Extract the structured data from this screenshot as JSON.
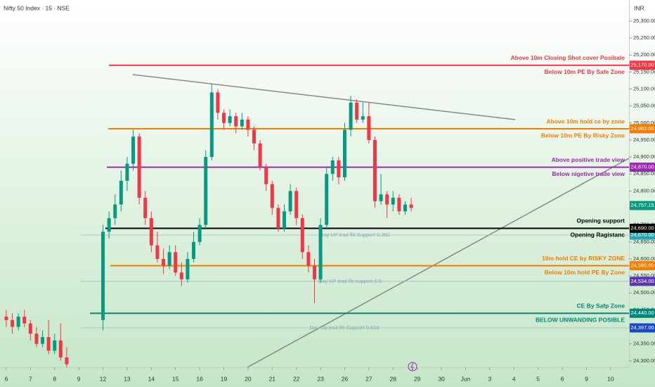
{
  "chart_data": {
    "type": "candlestick",
    "title": "Nifty 50 Index · 15 · NSE",
    "currency": "INR",
    "up_color": "#089981",
    "down_color": "#f23645",
    "xlim": [
      -0.26,
      25.76
    ],
    "xticks": [
      {
        "value": 0,
        "label": "6"
      },
      {
        "value": 1,
        "label": "7"
      },
      {
        "value": 2,
        "label": "8"
      },
      {
        "value": 3,
        "label": "9"
      },
      {
        "value": 4,
        "label": "12"
      },
      {
        "value": 5,
        "label": "13"
      },
      {
        "value": 6,
        "label": "14"
      },
      {
        "value": 7,
        "label": "15"
      },
      {
        "value": 8,
        "label": "16"
      },
      {
        "value": 9,
        "label": "19"
      },
      {
        "value": 10,
        "label": "20"
      },
      {
        "value": 11,
        "label": "21"
      },
      {
        "value": 12,
        "label": "22"
      },
      {
        "value": 13,
        "label": "23"
      },
      {
        "value": 14,
        "label": "26"
      },
      {
        "value": 15,
        "label": "27"
      },
      {
        "value": 16,
        "label": "28"
      },
      {
        "value": 17,
        "label": "29"
      },
      {
        "value": 18,
        "label": "30"
      },
      {
        "value": 19,
        "label": "Jun"
      },
      {
        "value": 20,
        "label": "3"
      },
      {
        "value": 21,
        "label": "4"
      },
      {
        "value": 22,
        "label": "5"
      },
      {
        "value": 23,
        "label": "6"
      },
      {
        "value": 24,
        "label": "9"
      },
      {
        "value": 25,
        "label": "10"
      }
    ],
    "ylim": [
      24281,
      25362
    ],
    "yticks": [
      {
        "value": 24300,
        "label": "24,300.00"
      },
      {
        "value": 24350,
        "label": "24,350.00"
      },
      {
        "value": 24400,
        "label": "24,400.00"
      },
      {
        "value": 24450,
        "label": "24,450.00"
      },
      {
        "value": 24500,
        "label": "24,500.00"
      },
      {
        "value": 24550,
        "label": "24,550.00"
      },
      {
        "value": 24600,
        "label": "24,600.00"
      },
      {
        "value": 24650,
        "label": "24,650.00"
      },
      {
        "value": 24700,
        "label": "24,700.00"
      },
      {
        "value": 24750,
        "label": "24,750.00"
      },
      {
        "value": 24800,
        "label": "24,800.00"
      },
      {
        "value": 24850,
        "label": "24,850.00"
      },
      {
        "value": 24900,
        "label": "24,900.00"
      },
      {
        "value": 24950,
        "label": "24,950.00"
      },
      {
        "value": 25000,
        "label": "25,000.00"
      },
      {
        "value": 25050,
        "label": "25,050.00"
      },
      {
        "value": 25100,
        "label": "25,100.00"
      },
      {
        "value": 25150,
        "label": "25,150.00"
      },
      {
        "value": 25200,
        "label": "25,200.00"
      },
      {
        "value": 25250,
        "label": "25,250.00"
      },
      {
        "value": 25300,
        "label": "25,300.00"
      }
    ],
    "x": [
      0,
      0.25,
      0.5,
      0.75,
      1,
      1.25,
      1.5,
      1.75,
      2,
      2.25,
      2.5,
      4,
      4.25,
      4.5,
      4.75,
      5,
      5.25,
      5.5,
      5.75,
      6,
      6.25,
      6.5,
      6.75,
      7,
      7.25,
      7.5,
      7.75,
      8,
      8.25,
      8.5,
      8.75,
      9,
      9.25,
      9.5,
      9.75,
      10,
      10.25,
      10.5,
      10.75,
      11,
      11.25,
      11.5,
      11.75,
      12,
      12.25,
      12.5,
      12.75,
      13,
      13.25,
      13.5,
      13.75,
      14,
      14.25,
      14.5,
      14.75,
      15,
      15.25,
      15.5,
      15.75,
      16,
      16.25,
      16.5,
      16.75
    ],
    "open": [
      24430,
      24420,
      24400,
      24430,
      24410,
      24380,
      24350,
      24370,
      24330,
      24360,
      24310,
      24420,
      24680,
      24720,
      24760,
      24830,
      24880,
      24960,
      24780,
      24720,
      24640,
      24600,
      24580,
      24620,
      24560,
      24540,
      24600,
      24650,
      24700,
      24900,
      25090,
      25030,
      25000,
      25020,
      24990,
      25010,
      24980,
      24940,
      24870,
      24820,
      24750,
      24690,
      24740,
      24800,
      24720,
      24620,
      24580,
      24540,
      24700,
      24850,
      24890,
      24840,
      24980,
      25060,
      25010,
      25020,
      24950,
      24770,
      24790,
      24760,
      24780,
      24740,
      24760
    ],
    "high": [
      24450,
      24440,
      24440,
      24450,
      24420,
      24400,
      24390,
      24420,
      24380,
      24410,
      24340,
      24700,
      24740,
      24790,
      24860,
      24900,
      24980,
      24970,
      24800,
      24740,
      24680,
      24630,
      24640,
      24640,
      24590,
      24620,
      24680,
      24720,
      24920,
      25115,
      25100,
      25040,
      25040,
      25030,
      25030,
      25020,
      24990,
      24950,
      24880,
      24830,
      24760,
      24760,
      24820,
      24810,
      24730,
      24640,
      24600,
      24720,
      24870,
      24900,
      24900,
      25000,
      25080,
      25070,
      25060,
      25060,
      24960,
      24850,
      24800,
      24800,
      24790,
      24770,
      24780
    ],
    "low": [
      24400,
      24380,
      24390,
      24400,
      24360,
      24340,
      24340,
      24320,
      24320,
      24300,
      24281,
      24390,
      24660,
      24700,
      24740,
      24800,
      24860,
      24760,
      24700,
      24620,
      24590,
      24555,
      24570,
      24550,
      24520,
      24530,
      24590,
      24640,
      24690,
      24890,
      25010,
      24980,
      24990,
      24970,
      24980,
      24960,
      24920,
      24860,
      24800,
      24730,
      24680,
      24680,
      24730,
      24700,
      24600,
      24560,
      24470,
      24530,
      24690,
      24830,
      24820,
      24830,
      24960,
      25000,
      25000,
      24940,
      24750,
      24760,
      24720,
      24740,
      24730,
      24730,
      24740
    ],
    "close": [
      24420,
      24400,
      24430,
      24410,
      24380,
      24350,
      24370,
      24330,
      24360,
      24310,
      24290,
      24680,
      24720,
      24760,
      24830,
      24880,
      24960,
      24780,
      24720,
      24640,
      24600,
      24580,
      24620,
      24560,
      24540,
      24600,
      24650,
      24700,
      24900,
      25090,
      25030,
      25000,
      25020,
      24990,
      25010,
      24980,
      24940,
      24870,
      24820,
      24750,
      24690,
      24740,
      24800,
      24720,
      24620,
      24580,
      24540,
      24700,
      24850,
      24890,
      24840,
      24980,
      25060,
      25010,
      25020,
      24950,
      24770,
      24790,
      24760,
      24780,
      24740,
      24760,
      24750
    ],
    "last_price": {
      "value": 24757.15,
      "label": "24,757.15"
    },
    "levels": [
      {
        "price": {
          "value": 25170,
          "label": "25,170.00"
        },
        "color": "#f23645",
        "above": "Above 10m Closing Shot cover Posibale",
        "below": "Below 10m PE By Safe Zone"
      },
      {
        "price": {
          "value": 24983,
          "label": "24,983.00"
        },
        "color": "#f57c00",
        "above": "Above 10m hold ce by zone",
        "below": "Below 10m PE By Risky Zone"
      },
      {
        "price": {
          "value": 24870,
          "label": "24,870.00"
        },
        "color": "#9c27b0",
        "above": "Above positive trade view",
        "below": "Below nigetive trade view"
      },
      {
        "price": {
          "value": 24690,
          "label": "24,690.00"
        },
        "color": "#000000",
        "above": "Opening support",
        "below": "Opening Ragistanc"
      },
      {
        "price": {
          "value": 24580,
          "label": "24,580.00"
        },
        "color": "#f57c00",
        "above": "10m hold CE by RISKY ZONE",
        "below": "Below 10m hold PE By Zone"
      },
      {
        "price": {
          "value": 24440,
          "label": "24,440.00"
        },
        "color": "#00897b",
        "above": "CE By Safp Zone",
        "below": "BELOW UNWANDING POSIBLE"
      }
    ],
    "fib_levels": [
      {
        "price": {
          "value": 24670,
          "label": "24,670.00"
        },
        "color": "#26a6b0",
        "text": "Day UP trad fib Support 0.382"
      },
      {
        "price": {
          "value": 24534,
          "label": "24,534.00"
        },
        "color": "#5e35b1",
        "text": "Day UP trad fib support 0.5"
      },
      {
        "price": {
          "value": 24397,
          "label": "24,397.00"
        },
        "color": "#1848cc",
        "text": "Day Up trad fib Support 0.618"
      }
    ]
  }
}
